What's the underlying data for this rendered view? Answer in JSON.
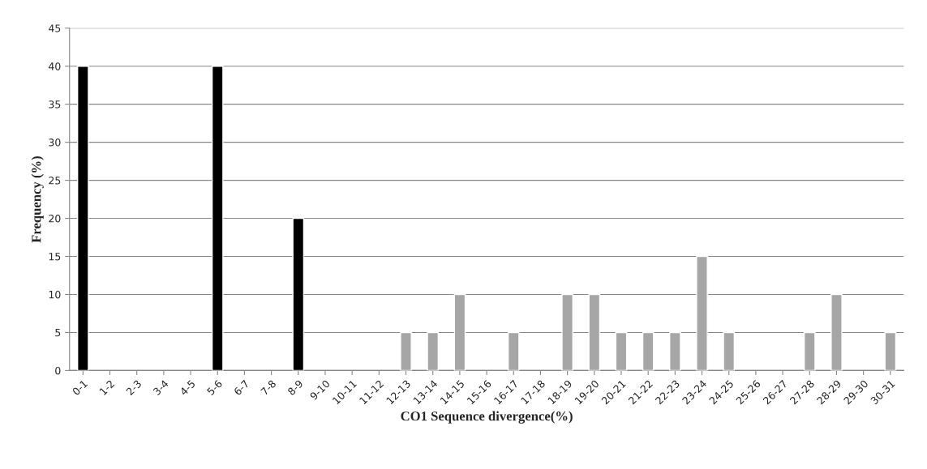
{
  "chart_data": {
    "type": "bar",
    "xlabel": "CO1 Sequence divergence(%)",
    "ylabel": "Frequency (%)",
    "categories": [
      "0-1",
      "1-2",
      "2-3",
      "3-4",
      "4-5",
      "5-6",
      "6-7",
      "7-8",
      "8-9",
      "9-10",
      "10-11",
      "11-12",
      "12-13",
      "13-14",
      "14-15",
      "15-16",
      "16-17",
      "17-18",
      "18-19",
      "19-20",
      "20-21",
      "21-22",
      "22-23",
      "23-24",
      "24-25",
      "25-26",
      "26-27",
      "27-28",
      "28-29",
      "29-30",
      "30-31"
    ],
    "values": [
      40,
      null,
      null,
      null,
      null,
      40,
      null,
      null,
      20,
      null,
      null,
      null,
      5,
      5,
      10,
      null,
      5,
      null,
      10,
      10,
      5,
      5,
      5,
      15,
      5,
      null,
      null,
      5,
      10,
      null,
      5
    ],
    "colors": [
      "#000000",
      null,
      null,
      null,
      null,
      "#000000",
      null,
      null,
      "#000000",
      null,
      null,
      null,
      "#a6a6a6",
      "#a6a6a6",
      "#a6a6a6",
      null,
      "#a6a6a6",
      null,
      "#a6a6a6",
      "#a6a6a6",
      "#a6a6a6",
      "#a6a6a6",
      "#a6a6a6",
      "#a6a6a6",
      "#a6a6a6",
      null,
      null,
      "#a6a6a6",
      "#a6a6a6",
      null,
      "#a6a6a6"
    ],
    "ylim": [
      0,
      45
    ],
    "yticks": [
      0,
      5,
      10,
      15,
      20,
      25,
      30,
      35,
      40,
      45
    ],
    "grid": "y",
    "legend": false
  }
}
